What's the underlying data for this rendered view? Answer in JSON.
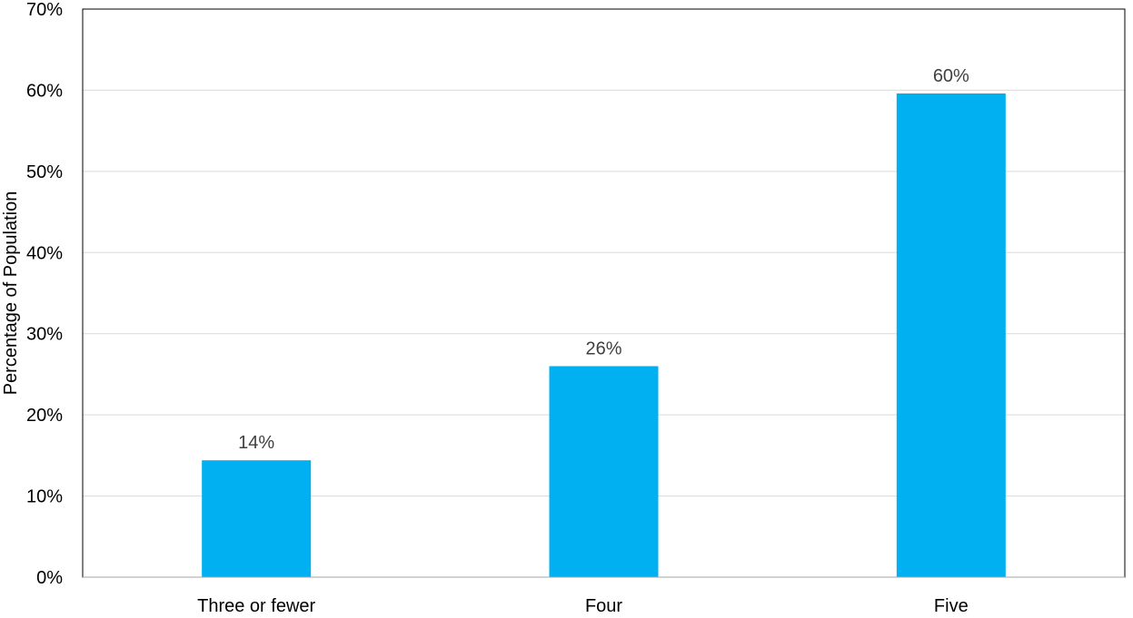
{
  "chart_data": {
    "type": "bar",
    "title": "",
    "xlabel": "",
    "ylabel": "Percentage of Population",
    "categories": [
      "Three or fewer",
      "Four",
      "Five"
    ],
    "values": [
      14.4,
      26,
      59.6
    ],
    "data_labels": [
      "14%",
      "26%",
      "60%"
    ],
    "ylim": [
      0,
      70
    ],
    "yticks": [
      0,
      10,
      20,
      30,
      40,
      50,
      60,
      70
    ],
    "ytick_labels": [
      "0%",
      "10%",
      "20%",
      "30%",
      "40%",
      "50%",
      "60%",
      "70%"
    ],
    "grid": true,
    "legend": "none",
    "colors": {
      "bar": "#00B0F0",
      "grid": "#D9D9D9",
      "frame": "#000000",
      "data_label": "#404040"
    }
  }
}
